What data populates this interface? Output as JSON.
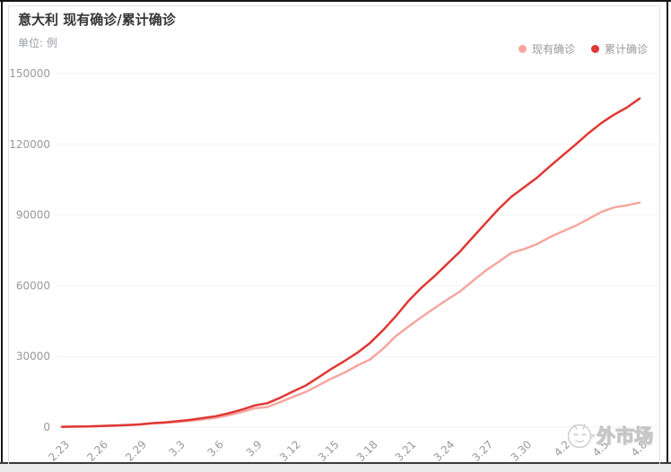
{
  "header": {
    "title": "意大利 现有确诊/累计确诊",
    "subtitle": "单位: 例"
  },
  "legend": [
    {
      "label": "现有确诊",
      "color": "#f5a7a0"
    },
    {
      "label": "累计确诊",
      "color": "#e03834"
    }
  ],
  "watermark": {
    "icon": "bird-mascot-icon",
    "text": "外市场"
  },
  "colors": {
    "current_series": "#f5a7a0",
    "cumulative_series": "#e03834",
    "axis_text": "#999999",
    "gridline": "#f2f2f2"
  },
  "chart_data": {
    "type": "line",
    "title": "意大利 现有确诊/累计确诊",
    "ylabel": "单位: 例",
    "grid": true,
    "legend_position": "top-right",
    "ylim": [
      0,
      150000
    ],
    "yticks": [
      0,
      30000,
      60000,
      90000,
      120000,
      150000
    ],
    "x_tick_interval": 3,
    "x": [
      "2.23",
      "2.24",
      "2.25",
      "2.26",
      "2.27",
      "2.28",
      "2.29",
      "3.1",
      "3.2",
      "3.3",
      "3.4",
      "3.5",
      "3.6",
      "3.7",
      "3.8",
      "3.9",
      "3.10",
      "3.11",
      "3.12",
      "3.13",
      "3.14",
      "3.15",
      "3.16",
      "3.17",
      "3.18",
      "3.19",
      "3.20",
      "3.21",
      "3.22",
      "3.23",
      "3.24",
      "3.25",
      "3.26",
      "3.27",
      "3.28",
      "3.29",
      "3.30",
      "3.31",
      "4.1",
      "4.2",
      "4.3",
      "4.4",
      "4.5",
      "4.6",
      "4.7",
      "4.8"
    ],
    "series": [
      {
        "name": "现有确诊",
        "color": "#f5a7a0",
        "values": [
          150,
          221,
          311,
          438,
          593,
          821,
          1049,
          1577,
          1835,
          2263,
          2706,
          3296,
          3916,
          5061,
          6387,
          7985,
          8514,
          10590,
          12839,
          14955,
          17750,
          20603,
          23073,
          26062,
          28710,
          33190,
          38549,
          42681,
          46638,
          50418,
          54030,
          57521,
          62013,
          66414,
          70065,
          73880,
          75528,
          77635,
          80572,
          83049,
          85388,
          88274,
          91246,
          93187,
          94067,
          95262
        ]
      },
      {
        "name": "累计确诊",
        "color": "#e03834",
        "values": [
          155,
          229,
          322,
          453,
          655,
          888,
          1128,
          1694,
          2036,
          2502,
          3089,
          3858,
          4636,
          5883,
          7375,
          9172,
          10149,
          12462,
          15113,
          17660,
          21157,
          24747,
          27980,
          31506,
          35713,
          41035,
          47021,
          53578,
          59138,
          63927,
          69176,
          74386,
          80539,
          86498,
          92472,
          97689,
          101739,
          105792,
          110574,
          115242,
          119827,
          124632,
          128948,
          132547,
          135586,
          139422
        ]
      }
    ]
  }
}
